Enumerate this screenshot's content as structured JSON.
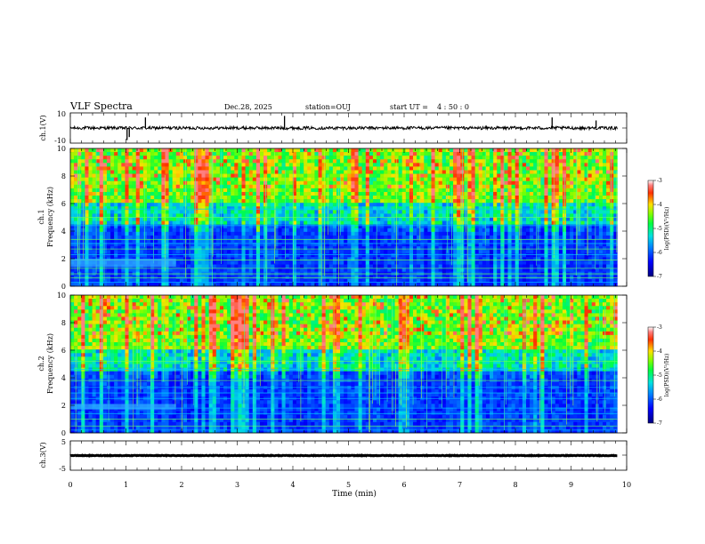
{
  "header": {
    "title": "VLF Spectra",
    "date": "Dec.28, 2025",
    "station": "station=OUJ",
    "start_label": "start  UT =",
    "start_time": "4 : 50 : 0"
  },
  "chart_data": [
    {
      "type": "line",
      "name": "ch1-waveform",
      "ylabel": "ch.1(V)",
      "ylim": [
        -10,
        10
      ],
      "yticks": [
        "10",
        "-10"
      ],
      "x_range_min": [
        0,
        9.83
      ],
      "baseline_v": 0,
      "noise_v": 1.0,
      "spikes": [
        {
          "t": 1.02,
          "v": -8
        },
        {
          "t": 1.06,
          "v": -6
        },
        {
          "t": 1.35,
          "v": 7
        },
        {
          "t": 3.85,
          "v": 8
        },
        {
          "t": 8.66,
          "v": 7
        },
        {
          "t": 9.45,
          "v": 5
        }
      ]
    },
    {
      "type": "heatmap",
      "name": "ch1-spectrogram",
      "ylabel": "ch.1\nFrequency (kHz)",
      "ylim": [
        0,
        10
      ],
      "yticks": [
        "0",
        "2",
        "4",
        "6",
        "8",
        "10"
      ],
      "x_range_min": [
        0,
        9.83
      ],
      "colorbar": {
        "label": "log(PSD)(V²/Hz)",
        "range": [
          -7,
          -3
        ],
        "ticks": [
          "-3",
          "-4",
          "-5",
          "-6",
          "-7"
        ]
      },
      "narrowband_khz": [
        0.3,
        0.6,
        0.9,
        1.3,
        1.9,
        2.3,
        2.7,
        3.1,
        3.4,
        4.4,
        5.0,
        5.6
      ],
      "band_feature": {
        "t_end": 1.9,
        "f_lo": 1.4,
        "f_hi": 2.0
      }
    },
    {
      "type": "heatmap",
      "name": "ch2-spectrogram",
      "ylabel": "ch.2\nFrequency (kHz)",
      "ylim": [
        0,
        10
      ],
      "yticks": [
        "0",
        "2",
        "4",
        "6",
        "8",
        "10"
      ],
      "x_range_min": [
        0,
        9.83
      ],
      "colorbar": {
        "label": "log(PSD)(V²/Hz)",
        "range": [
          -7,
          -3
        ],
        "ticks": [
          "-3",
          "-4",
          "-5",
          "-6",
          "-7"
        ]
      },
      "narrowband_khz": [
        0.2,
        0.5,
        1.0,
        1.4,
        1.8,
        2.5,
        2.9,
        3.3,
        3.8,
        4.6,
        5.2
      ],
      "band_feature": {
        "t_end": 1.9,
        "f_lo": 1.7,
        "f_hi": 2.1
      }
    },
    {
      "type": "line",
      "name": "ch3-waveform",
      "ylabel": "ch.3(V)",
      "ylim": [
        -5,
        5
      ],
      "yticks": [
        "5",
        "-5"
      ],
      "x_range_min": [
        0,
        9.83
      ],
      "baseline_v": 0,
      "noise_v": 0.1
    }
  ],
  "xaxis": {
    "label": "Time  (min)",
    "ticks": [
      "0",
      "1",
      "2",
      "3",
      "4",
      "5",
      "6",
      "7",
      "8",
      "9",
      "10"
    ],
    "range": [
      0,
      10
    ]
  }
}
